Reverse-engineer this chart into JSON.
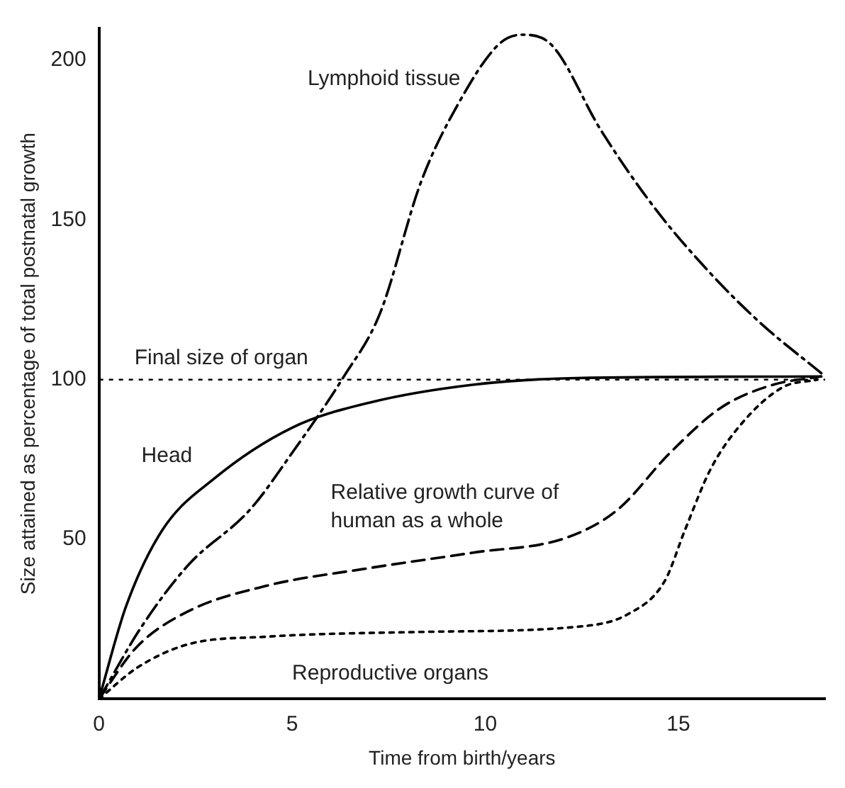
{
  "chart_data": {
    "type": "line",
    "xlabel": "Time from birth/years",
    "ylabel": "Size attained as percentage of total postnatal growth",
    "xlim": [
      0,
      18.8
    ],
    "xticks": [
      0,
      5,
      10,
      15
    ],
    "ylim": [
      0,
      210
    ],
    "yticks": [
      50,
      100,
      150,
      200
    ],
    "grid": false,
    "legend": false,
    "marker": "none",
    "ref_lines": [
      {
        "axis": "y",
        "value": 100,
        "label": "Final size of organ",
        "line_style": "dotted",
        "color": "#000000"
      }
    ],
    "series": [
      {
        "name": "Lymphoid tissue",
        "color": "#000000",
        "line_style": "dashdot",
        "x": [
          0,
          1.1,
          2.3,
          3.91,
          4.99,
          6.33,
          7.27,
          8.34,
          9.28,
          10.35,
          10.94,
          11.7,
          13.0,
          14.37,
          15.7,
          17.1,
          18.7
        ],
        "values": [
          0,
          22.6,
          41.8,
          59.3,
          76.9,
          100.8,
          120.6,
          162,
          185.9,
          205,
          208,
          205,
          178,
          154,
          135,
          118,
          102
        ]
      },
      {
        "name": "Head",
        "color": "#000000",
        "line_style": "solid",
        "x": [
          0,
          0.7,
          1.64,
          2.97,
          4.99,
          7.0,
          9.67,
          12.36,
          18.7
        ],
        "values": [
          0,
          29,
          52.9,
          68.9,
          84.9,
          92.8,
          98.4,
          100.5,
          101
        ]
      },
      {
        "name": "Relative growth curve of human as a whole",
        "color": "#000000",
        "line_style": "dashed",
        "x": [
          0,
          0.97,
          2.3,
          4.32,
          7.0,
          9.67,
          12.1,
          13.43,
          14.77,
          16.1,
          17.45,
          18.7
        ],
        "values": [
          0,
          16.2,
          27.4,
          35.4,
          41,
          45.8,
          50.5,
          59.3,
          76.9,
          91.2,
          98.4,
          101
        ]
      },
      {
        "name": "Reproductive organs",
        "color": "#000000",
        "line_style": "dotted",
        "x": [
          0,
          1.0,
          2.3,
          4.32,
          8.34,
          12.36,
          13.7,
          14.65,
          15.17,
          15.84,
          16.65,
          17.7,
          18.6
        ],
        "values": [
          0,
          9.9,
          17.1,
          19.5,
          21,
          22.6,
          26.6,
          37,
          52.9,
          72.1,
          86.4,
          97.6,
          100
        ]
      }
    ]
  }
}
